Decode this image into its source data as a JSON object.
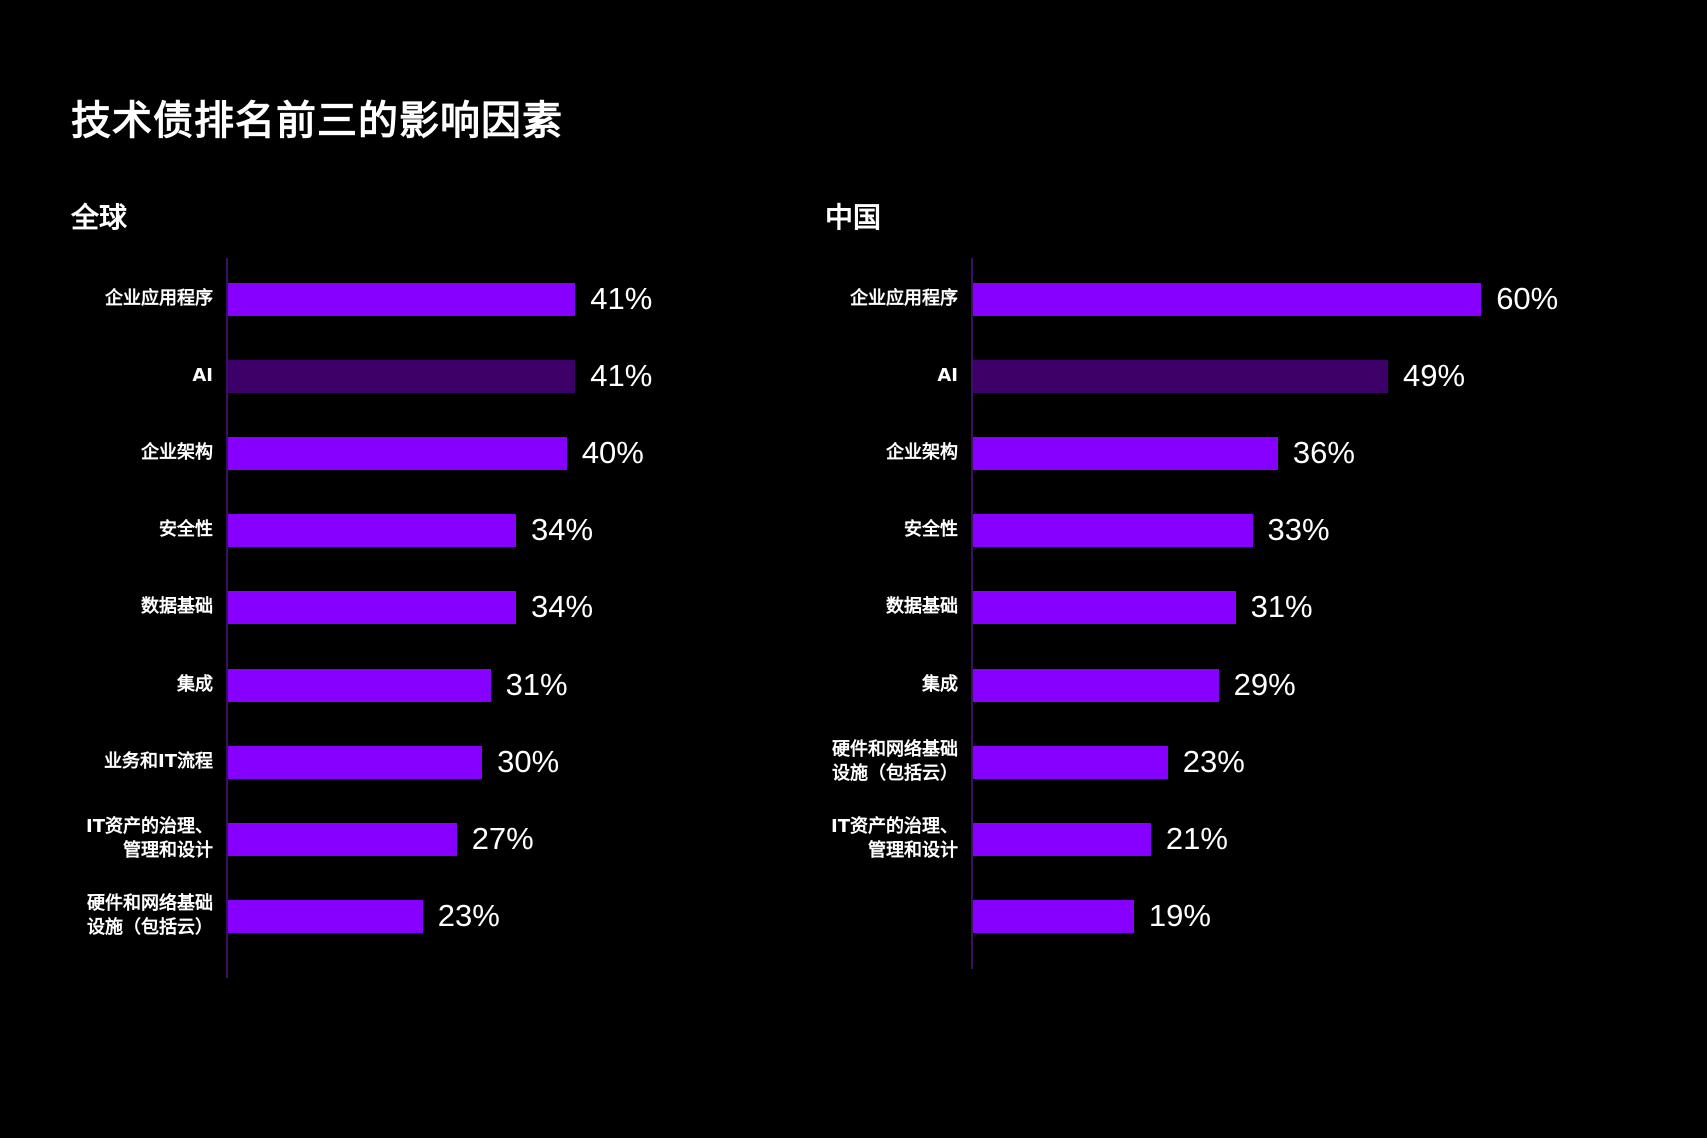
{
  "title": "技术债排名前三的影响因素",
  "chart_data": [
    {
      "type": "bar",
      "orientation": "horizontal",
      "title": "全球",
      "categories": [
        "企业应用程序",
        "AI",
        "企业架构",
        "安全性",
        "数据基础",
        "集成",
        "业务和IT流程",
        "IT资产的治理、\n管理和设计",
        "硬件和网络基础\n设施（包括云）"
      ],
      "values": [
        41,
        41,
        40,
        34,
        34,
        31,
        30,
        27,
        23
      ],
      "value_labels": [
        "41%",
        "41%",
        "40%",
        "34%",
        "34%",
        "31%",
        "30%",
        "27%",
        "23%"
      ],
      "highlight_index": 1,
      "unit": "%"
    },
    {
      "type": "bar",
      "orientation": "horizontal",
      "title": "中国",
      "categories": [
        "企业应用程序",
        "AI",
        "企业架构",
        "安全性",
        "数据基础",
        "集成",
        "硬件和网络基础\n设施（包括云）",
        "IT资产的治理、\n管理和设计",
        ""
      ],
      "values": [
        60,
        49,
        36,
        33,
        31,
        29,
        23,
        21,
        19
      ],
      "value_labels": [
        "60%",
        "49%",
        "36%",
        "33%",
        "31%",
        "29%",
        "23%",
        "21%",
        "19%"
      ],
      "highlight_index": 1,
      "unit": "%"
    }
  ],
  "colors": {
    "bar": "#8700ff",
    "highlight": "#3d0068",
    "axis": "#3a1060"
  }
}
